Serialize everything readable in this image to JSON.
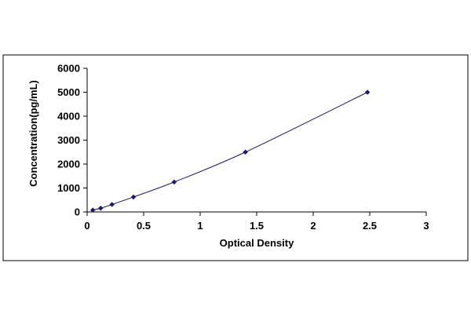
{
  "chart_data": {
    "type": "scatter",
    "title": "",
    "xlabel": "Optical Density",
    "ylabel": "Concentration(pg/mL)",
    "xlim": [
      0,
      3
    ],
    "ylim": [
      0,
      6000
    ],
    "x_ticks": [
      "0",
      "0.5",
      "1",
      "1.5",
      "2",
      "2.5",
      "3"
    ],
    "y_ticks": [
      "0",
      "1000",
      "2000",
      "3000",
      "4000",
      "5000",
      "6000"
    ],
    "grid": false,
    "legend": "none",
    "marker": "diamond",
    "trendline": "smooth curve through points",
    "colors": {
      "marker": "#1a1a6e",
      "line": "#1a1a6e",
      "axis": "#000000",
      "frame": "#000000"
    },
    "series": [
      {
        "x": [
          0.05,
          0.12,
          0.22,
          0.41,
          0.77,
          1.4,
          2.48
        ],
        "y": [
          78,
          156,
          312,
          625,
          1250,
          2500,
          5000
        ]
      }
    ]
  }
}
